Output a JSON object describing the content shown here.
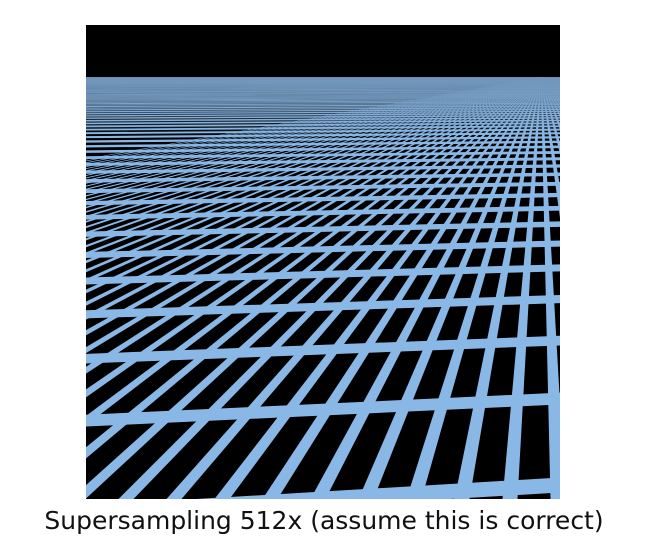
{
  "caption": "Supersampling 512x (assume this is correct)",
  "scene": {
    "background_color": "#000000",
    "grid_color": "#8ab8e6",
    "horizon_color": "#6f93b7",
    "depiction": "checkerboard-grid-plane-in-perspective"
  }
}
